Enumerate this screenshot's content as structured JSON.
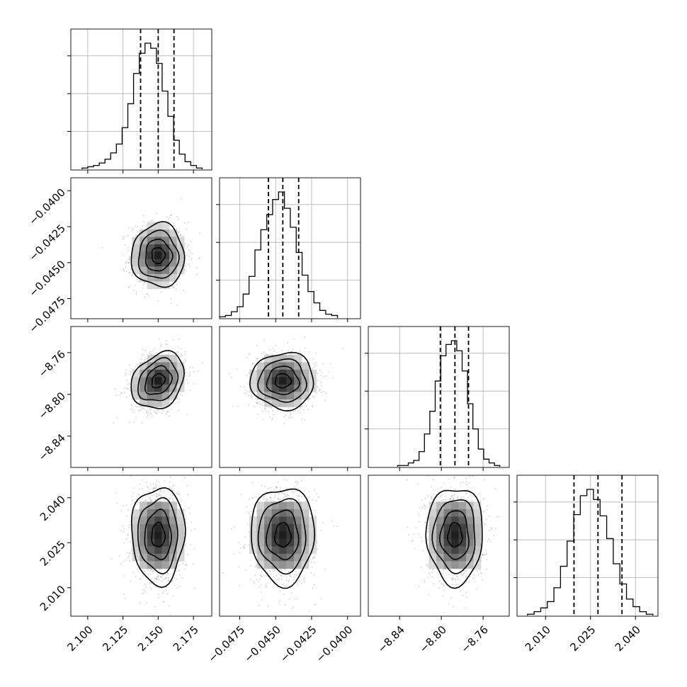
{
  "chart_data": {
    "type": "corner",
    "dimensions": 4,
    "histogram_color": "#000000",
    "contour_color": "#000000",
    "sample_color": "#808080",
    "grid": true,
    "quantile_lines": "dashed",
    "params": [
      {
        "range": [
          2.088,
          2.188
        ],
        "ticks": [
          2.1,
          2.125,
          2.15,
          2.175
        ],
        "tick_labels": [
          "2.100",
          "2.125",
          "2.150",
          "2.175"
        ],
        "quantiles": [
          2.1375,
          2.15,
          2.1612
        ],
        "mean": 2.15,
        "sd": 0.0094,
        "hist_counts": [
          1,
          2,
          3,
          5,
          8,
          13,
          20,
          33,
          52,
          76,
          92,
          100,
          96,
          84,
          62,
          42,
          23,
          12,
          6,
          3,
          1
        ],
        "hist_edges": [
          2.096,
          2.1812
        ]
      },
      {
        "range": [
          -0.0489,
          -0.0391
        ],
        "ticks": [
          -0.0475,
          -0.045,
          -0.0425,
          -0.04
        ],
        "tick_labels": [
          "−0.0475",
          "−0.0450",
          "−0.0425",
          "−0.0400"
        ],
        "quantiles": [
          -0.0455,
          -0.0445,
          -0.0434
        ],
        "mean": -0.0445,
        "sd": 0.0011,
        "hist_counts": [
          1,
          2,
          5,
          9,
          19,
          33,
          54,
          70,
          82,
          94,
          100,
          87,
          72,
          52,
          34,
          21,
          12,
          6,
          3,
          2
        ],
        "hist_edges": [
          -0.0489,
          -0.0407
        ]
      },
      {
        "range": [
          -8.87,
          -8.735
        ],
        "ticks": [
          -8.84,
          -8.8,
          -8.76
        ],
        "tick_labels": [
          "−8.84",
          "−8.80",
          "−8.76"
        ],
        "quantiles": [
          -8.801,
          -8.787,
          -8.774
        ],
        "mean": -8.787,
        "sd": 0.0135,
        "hist_counts": [
          1,
          1,
          3,
          5,
          12,
          26,
          44,
          68,
          88,
          97,
          100,
          92,
          76,
          50,
          30,
          14,
          6,
          3,
          1
        ],
        "hist_edges": [
          -8.842,
          -8.744
        ]
      },
      {
        "range": [
          2.0005,
          2.0475
        ],
        "ticks": [
          2.01,
          2.025,
          2.04
        ],
        "tick_labels": [
          "2.010",
          "2.025",
          "2.040"
        ],
        "quantiles": [
          2.0195,
          2.0275,
          2.0355
        ],
        "mean": 2.0275,
        "sd": 0.0081,
        "hist_counts": [
          1,
          3,
          6,
          11,
          22,
          39,
          59,
          80,
          95,
          100,
          92,
          79,
          61,
          41,
          25,
          13,
          7,
          3,
          1
        ],
        "hist_edges": [
          2.004,
          2.0458
        ]
      }
    ],
    "pair_correlations": {
      "1-0": 0.0,
      "2-0": 0.25,
      "2-1": 0.0,
      "3-0": 0.0,
      "3-1": 0.0,
      "3-2": 0.0
    },
    "contour_levels_sigma": [
      0.5,
      1.0,
      1.5,
      2.0
    ]
  }
}
